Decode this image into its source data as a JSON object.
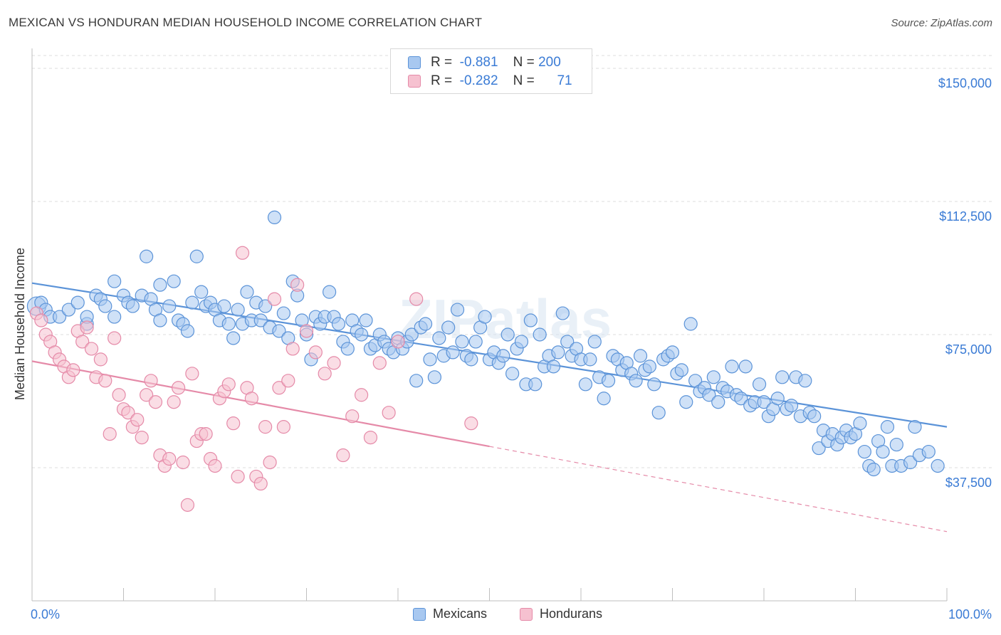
{
  "title": "MEXICAN VS HONDURAN MEDIAN HOUSEHOLD INCOME CORRELATION CHART",
  "source": "Source: ZipAtlas.com",
  "watermark": "ZIPatlas",
  "legend": {
    "rows": [
      {
        "r_label": "R =",
        "r_value": "-0.881",
        "n_label": "N =",
        "n_value": "200",
        "color": "#a8c8f0",
        "border": "#5b93d8"
      },
      {
        "r_label": "R =",
        "r_value": "-0.282",
        "n_label": "N =",
        "n_value": "71",
        "color": "#f6c1d0",
        "border": "#e58aa8"
      }
    ]
  },
  "bottom_legend": [
    {
      "label": "Mexicans",
      "color": "#a8c8f0",
      "border": "#5b93d8"
    },
    {
      "label": "Hondurans",
      "color": "#f6c1d0",
      "border": "#e58aa8"
    }
  ],
  "chart_data": {
    "type": "scatter",
    "xlabel": "",
    "ylabel": "Median Household Income",
    "x_tick_labels": [
      "0.0%",
      "100.0%"
    ],
    "y_tick_labels": [
      "$150,000",
      "$112,500",
      "$75,000",
      "$37,500"
    ],
    "y_ticks": [
      150000,
      112500,
      75000,
      37500
    ],
    "xlim": [
      0,
      100
    ],
    "ylim": [
      0,
      153600
    ],
    "grid": true,
    "series": [
      {
        "name": "Mexicans",
        "color": "#5b93d8",
        "fill": "#a8c8f0",
        "trend": {
          "x0": 0,
          "y0": 89500,
          "x1": 100,
          "y1": 49000,
          "dashed_to": 100
        },
        "points": [
          [
            0.5,
            83
          ],
          [
            1,
            84
          ],
          [
            1.5,
            82
          ],
          [
            2,
            80
          ],
          [
            3,
            80
          ],
          [
            4,
            82
          ],
          [
            5,
            84
          ],
          [
            6,
            78
          ],
          [
            6,
            80
          ],
          [
            7,
            86
          ],
          [
            7.5,
            85
          ],
          [
            8,
            83
          ],
          [
            9,
            80
          ],
          [
            9,
            90
          ],
          [
            10,
            86
          ],
          [
            10.5,
            84
          ],
          [
            11,
            83
          ],
          [
            12,
            86
          ],
          [
            12.5,
            97
          ],
          [
            13,
            85
          ],
          [
            13.5,
            82
          ],
          [
            14,
            79
          ],
          [
            14,
            89
          ],
          [
            15,
            83
          ],
          [
            15.5,
            90
          ],
          [
            16,
            79
          ],
          [
            16.5,
            78
          ],
          [
            17,
            76
          ],
          [
            17.5,
            84
          ],
          [
            18,
            97
          ],
          [
            18.5,
            87
          ],
          [
            19,
            83
          ],
          [
            19.5,
            84
          ],
          [
            20,
            82
          ],
          [
            20.5,
            79
          ],
          [
            21,
            83
          ],
          [
            21.5,
            78
          ],
          [
            22,
            74
          ],
          [
            22.5,
            82
          ],
          [
            23,
            78
          ],
          [
            23.5,
            87
          ],
          [
            24,
            79
          ],
          [
            24.5,
            84
          ],
          [
            25,
            79
          ],
          [
            25.5,
            83
          ],
          [
            26,
            77
          ],
          [
            26.5,
            108
          ],
          [
            27,
            76
          ],
          [
            27.5,
            81
          ],
          [
            28,
            74
          ],
          [
            28.5,
            90
          ],
          [
            29,
            86
          ],
          [
            29.5,
            79
          ],
          [
            30,
            75
          ],
          [
            30.5,
            68
          ],
          [
            31,
            80
          ],
          [
            31.5,
            78
          ],
          [
            32,
            80
          ],
          [
            32.5,
            87
          ],
          [
            33,
            80
          ],
          [
            33.5,
            78
          ],
          [
            34,
            73
          ],
          [
            34.5,
            71
          ],
          [
            35,
            79
          ],
          [
            35.5,
            76
          ],
          [
            36,
            75
          ],
          [
            36.5,
            79
          ],
          [
            37,
            71
          ],
          [
            37.5,
            72
          ],
          [
            38,
            75
          ],
          [
            38.5,
            73
          ],
          [
            39,
            71
          ],
          [
            39.5,
            70
          ],
          [
            40,
            74
          ],
          [
            40.5,
            71
          ],
          [
            41,
            73
          ],
          [
            41.5,
            75
          ],
          [
            42,
            62
          ],
          [
            42.5,
            77
          ],
          [
            43,
            78
          ],
          [
            43.5,
            68
          ],
          [
            44,
            63
          ],
          [
            44.5,
            74
          ],
          [
            45,
            69
          ],
          [
            45.5,
            77
          ],
          [
            46,
            70
          ],
          [
            46.5,
            82
          ],
          [
            47,
            73
          ],
          [
            47.5,
            69
          ],
          [
            48,
            68
          ],
          [
            48.5,
            73
          ],
          [
            49,
            77
          ],
          [
            49.5,
            80
          ],
          [
            50,
            68
          ],
          [
            50.5,
            70
          ],
          [
            51,
            67
          ],
          [
            51.5,
            69
          ],
          [
            52,
            75
          ],
          [
            52.5,
            64
          ],
          [
            53,
            71
          ],
          [
            53.5,
            73
          ],
          [
            54,
            61
          ],
          [
            54.5,
            79
          ],
          [
            55,
            61
          ],
          [
            55.5,
            75
          ],
          [
            56,
            66
          ],
          [
            56.5,
            69
          ],
          [
            57,
            66
          ],
          [
            57.5,
            70
          ],
          [
            58,
            81
          ],
          [
            58.5,
            73
          ],
          [
            59,
            69
          ],
          [
            59.5,
            71
          ],
          [
            60,
            68
          ],
          [
            60.5,
            61
          ],
          [
            61,
            68
          ],
          [
            61.5,
            73
          ],
          [
            62,
            63
          ],
          [
            62.5,
            57
          ],
          [
            63,
            62
          ],
          [
            63.5,
            69
          ],
          [
            64,
            68
          ],
          [
            64.5,
            65
          ],
          [
            65,
            67
          ],
          [
            65.5,
            64
          ],
          [
            66,
            62
          ],
          [
            66.5,
            69
          ],
          [
            67,
            65
          ],
          [
            67.5,
            66
          ],
          [
            68,
            61
          ],
          [
            68.5,
            53
          ],
          [
            69,
            68
          ],
          [
            69.5,
            69
          ],
          [
            70,
            70
          ],
          [
            70.5,
            64
          ],
          [
            71,
            65
          ],
          [
            71.5,
            56
          ],
          [
            72,
            78
          ],
          [
            72.5,
            62
          ],
          [
            73,
            59
          ],
          [
            73.5,
            60
          ],
          [
            74,
            58
          ],
          [
            74.5,
            63
          ],
          [
            75,
            56
          ],
          [
            75.5,
            60
          ],
          [
            76,
            59
          ],
          [
            76.5,
            66
          ],
          [
            77,
            58
          ],
          [
            77.5,
            57
          ],
          [
            78,
            66
          ],
          [
            78.5,
            55
          ],
          [
            79,
            56
          ],
          [
            79.5,
            61
          ],
          [
            80,
            56
          ],
          [
            80.5,
            52
          ],
          [
            81,
            54
          ],
          [
            81.5,
            57
          ],
          [
            82,
            63
          ],
          [
            82.5,
            54
          ],
          [
            83,
            55
          ],
          [
            83.5,
            63
          ],
          [
            84,
            52
          ],
          [
            84.5,
            62
          ],
          [
            85,
            53
          ],
          [
            85.5,
            52
          ],
          [
            86,
            43
          ],
          [
            86.5,
            48
          ],
          [
            87,
            45
          ],
          [
            87.5,
            47
          ],
          [
            88,
            44
          ],
          [
            88.5,
            46
          ],
          [
            89,
            48
          ],
          [
            89.5,
            46
          ],
          [
            90,
            47
          ],
          [
            90.5,
            50
          ],
          [
            91,
            42
          ],
          [
            91.5,
            38
          ],
          [
            92,
            37
          ],
          [
            92.5,
            45
          ],
          [
            93,
            42
          ],
          [
            93.5,
            49
          ],
          [
            94,
            38
          ],
          [
            94.5,
            44
          ],
          [
            95,
            38
          ],
          [
            96,
            39
          ],
          [
            96.5,
            49
          ],
          [
            97,
            41
          ],
          [
            98,
            42
          ],
          [
            99,
            38
          ]
        ]
      },
      {
        "name": "Hondurans",
        "color": "#e58aa8",
        "fill": "#f6c1d0",
        "trend": {
          "x0": 0,
          "y0": 67500,
          "x1": 50,
          "y1": 43500,
          "dashed_to": 100
        },
        "points": [
          [
            0.5,
            81
          ],
          [
            1,
            79
          ],
          [
            1.5,
            75
          ],
          [
            2,
            73
          ],
          [
            2.5,
            70
          ],
          [
            3,
            68
          ],
          [
            3.5,
            66
          ],
          [
            4,
            63
          ],
          [
            4.5,
            65
          ],
          [
            5,
            76
          ],
          [
            5.5,
            73
          ],
          [
            6,
            77
          ],
          [
            6.5,
            71
          ],
          [
            7,
            63
          ],
          [
            7.5,
            68
          ],
          [
            8,
            62
          ],
          [
            8.5,
            47
          ],
          [
            9,
            74
          ],
          [
            9.5,
            58
          ],
          [
            10,
            54
          ],
          [
            10.5,
            53
          ],
          [
            11,
            49
          ],
          [
            11.5,
            51
          ],
          [
            12,
            46
          ],
          [
            12.5,
            58
          ],
          [
            13,
            62
          ],
          [
            13.5,
            56
          ],
          [
            14,
            41
          ],
          [
            14.5,
            38
          ],
          [
            15,
            40
          ],
          [
            15.5,
            56
          ],
          [
            16,
            60
          ],
          [
            16.5,
            39
          ],
          [
            17,
            27
          ],
          [
            17.5,
            64
          ],
          [
            18,
            45
          ],
          [
            18.5,
            47
          ],
          [
            19,
            47
          ],
          [
            19.5,
            40
          ],
          [
            20,
            38
          ],
          [
            20.5,
            57
          ],
          [
            21,
            59
          ],
          [
            21.5,
            61
          ],
          [
            22,
            50
          ],
          [
            22.5,
            35
          ],
          [
            23,
            98
          ],
          [
            23.5,
            60
          ],
          [
            24,
            57
          ],
          [
            24.5,
            35
          ],
          [
            25,
            33
          ],
          [
            25.5,
            49
          ],
          [
            26,
            39
          ],
          [
            26.5,
            85
          ],
          [
            27,
            60
          ],
          [
            27.5,
            49
          ],
          [
            28,
            62
          ],
          [
            28.5,
            71
          ],
          [
            29,
            89
          ],
          [
            30,
            76
          ],
          [
            31,
            70
          ],
          [
            32,
            64
          ],
          [
            33,
            67
          ],
          [
            34,
            41
          ],
          [
            35,
            52
          ],
          [
            36,
            58
          ],
          [
            37,
            46
          ],
          [
            38,
            67
          ],
          [
            39,
            53
          ],
          [
            40,
            73
          ],
          [
            48,
            50
          ],
          [
            42,
            85
          ]
        ]
      }
    ]
  }
}
